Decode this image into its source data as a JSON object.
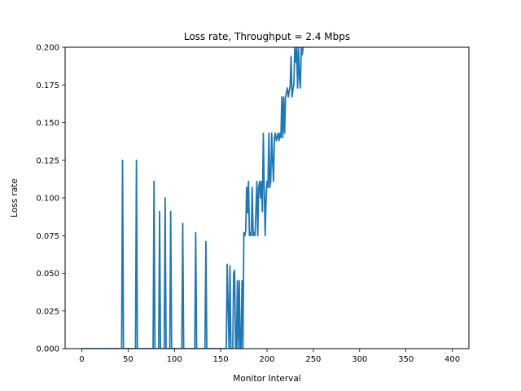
{
  "chart_data": {
    "type": "line",
    "title": "Loss rate, Throughput = 2.4 Mbps",
    "xlabel": "Monitor Interval",
    "ylabel": "Loss rate",
    "xlim": [
      -18,
      418
    ],
    "ylim": [
      0,
      0.2
    ],
    "xticks": [
      0,
      50,
      100,
      150,
      200,
      250,
      300,
      350,
      400
    ],
    "yticks": [
      0.0,
      0.025,
      0.05,
      0.075,
      0.1,
      0.125,
      0.15,
      0.175,
      0.2
    ],
    "xtick_labels": [
      "0",
      "50",
      "100",
      "150",
      "200",
      "250",
      "300",
      "350",
      "400"
    ],
    "ytick_labels": [
      "0.000",
      "0.025",
      "0.050",
      "0.075",
      "0.100",
      "0.125",
      "0.150",
      "0.175",
      "0.200"
    ],
    "grid": false,
    "legend": "none",
    "line_color": "#1f77b4",
    "series": [
      {
        "x": [
          0,
          43,
          44,
          45,
          58,
          59,
          60,
          77,
          78,
          79,
          83,
          84,
          85,
          89,
          90,
          91,
          95,
          96,
          97,
          108,
          109,
          110,
          122,
          123,
          124,
          133,
          134,
          135,
          155,
          156,
          157,
          159,
          160,
          161,
          163,
          164,
          165,
          166,
          167,
          168,
          169,
          170,
          171,
          172,
          173,
          174,
          175,
          176,
          177,
          178,
          179,
          180,
          181,
          182,
          183,
          184,
          185,
          186,
          187,
          188,
          189,
          190,
          191,
          192,
          193,
          194,
          195,
          196,
          197,
          198,
          199,
          200,
          201,
          202,
          203,
          204,
          205,
          206,
          207,
          208,
          209,
          210,
          211,
          212,
          213,
          214,
          215,
          216,
          217,
          218,
          219,
          220,
          221,
          222,
          223,
          224,
          225,
          226,
          227,
          228,
          229,
          230,
          231,
          232,
          233,
          234,
          235,
          236,
          237,
          238,
          239,
          240,
          241,
          242,
          243,
          244,
          245,
          246,
          247,
          248
        ],
        "y": [
          0,
          0,
          0.125,
          0,
          0,
          0.125,
          0,
          0,
          0.111,
          0,
          0,
          0.091,
          0,
          0,
          0.1,
          0,
          0,
          0.091,
          0,
          0,
          0.083,
          0,
          0,
          0.077,
          0,
          0,
          0.071,
          0,
          0,
          0,
          0.056,
          0,
          0.055,
          0,
          0,
          0.05,
          0.052,
          0,
          0,
          0.045,
          0,
          0.045,
          0,
          0,
          0.045,
          0,
          0.077,
          0.075,
          0.078,
          0.107,
          0.09,
          0.111,
          0.075,
          0.077,
          0.075,
          0.107,
          0.075,
          0.077,
          0.075,
          0.091,
          0.111,
          0.075,
          0.107,
          0.111,
          0.1,
          0.111,
          0.091,
          0.143,
          0.107,
          0.075,
          0.1,
          0.111,
          0.107,
          0.143,
          0.107,
          0.111,
          0.143,
          0.125,
          0.111,
          0.14,
          0.143,
          0.138,
          0.14,
          0.143,
          0.138,
          0.143,
          0.14,
          0.167,
          0.14,
          0.167,
          0.143,
          0.167,
          0.17,
          0.173,
          0.167,
          0.171,
          0.174,
          0.194,
          0.167,
          0.172,
          0.175,
          0.2,
          0.19,
          0.2,
          0.173,
          0.2,
          0.18,
          0.173,
          0.2,
          0.195,
          0.2,
          0.205,
          0.21,
          0.215,
          0.2,
          0.22,
          0.205,
          0.21,
          0.2,
          0.21
        ]
      }
    ]
  }
}
